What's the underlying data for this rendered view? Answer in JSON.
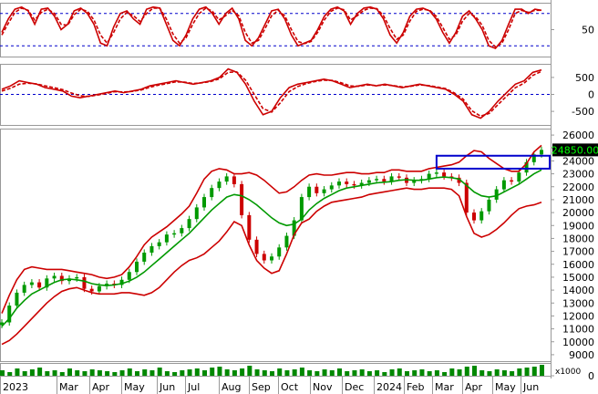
{
  "chart_data": {
    "type": "line",
    "colors": {
      "price": "#cc0000",
      "ma": "#009900",
      "band": "#cc0000",
      "up": "#009900",
      "down": "#cc0000",
      "ref": "#0000cc",
      "box": "#0000cc",
      "volume": "#008800"
    },
    "x_labels": [
      "2023",
      "Mar",
      "Apr",
      "May",
      "Jun",
      "Jul",
      "Aug",
      "Sep",
      "Oct",
      "Nov",
      "Dec",
      "2024",
      "Feb",
      "Mar",
      "Apr",
      "May",
      "Jun"
    ],
    "oscillator": {
      "y_ticks": [
        50
      ],
      "ref_lines": [
        80,
        20
      ],
      "ylim": [
        0,
        100
      ],
      "k": [
        45,
        70,
        88,
        92,
        85,
        60,
        88,
        90,
        75,
        50,
        60,
        85,
        90,
        80,
        60,
        25,
        20,
        55,
        80,
        85,
        70,
        60,
        88,
        92,
        90,
        60,
        30,
        20,
        40,
        70,
        88,
        92,
        80,
        60,
        80,
        90,
        70,
        30,
        20,
        35,
        60,
        85,
        88,
        70,
        40,
        20,
        25,
        30,
        50,
        75,
        88,
        92,
        85,
        60,
        80,
        90,
        92,
        88,
        70,
        40,
        25,
        45,
        75,
        88,
        90,
        85,
        70,
        45,
        25,
        45,
        75,
        85,
        70,
        50,
        20,
        15,
        30,
        60,
        88,
        88,
        80,
        88,
        86
      ],
      "d": [
        40,
        62,
        82,
        90,
        86,
        68,
        82,
        88,
        80,
        60,
        58,
        78,
        88,
        84,
        68,
        40,
        25,
        45,
        70,
        82,
        76,
        65,
        80,
        90,
        90,
        70,
        42,
        25,
        35,
        60,
        80,
        90,
        84,
        68,
        76,
        86,
        76,
        45,
        25,
        30,
        52,
        76,
        86,
        76,
        50,
        28,
        24,
        28,
        45,
        68,
        84,
        90,
        87,
        68,
        76,
        86,
        90,
        89,
        76,
        52,
        32,
        40,
        66,
        84,
        88,
        86,
        75,
        54,
        32,
        40,
        66,
        80,
        74,
        58,
        30,
        18,
        25,
        50,
        80,
        86,
        82,
        86,
        86
      ]
    },
    "macd": {
      "y_ticks": [
        500,
        0,
        -500
      ],
      "ylim": [
        -900,
        900
      ],
      "macd": [
        150,
        250,
        400,
        350,
        300,
        200,
        150,
        100,
        -50,
        -100,
        -50,
        0,
        50,
        100,
        50,
        100,
        150,
        250,
        300,
        350,
        400,
        350,
        300,
        350,
        400,
        500,
        750,
        650,
        300,
        -200,
        -600,
        -500,
        -100,
        200,
        300,
        350,
        400,
        450,
        400,
        300,
        200,
        250,
        300,
        250,
        300,
        250,
        200,
        250,
        300,
        250,
        200,
        150,
        0,
        -200,
        -600,
        -700,
        -500,
        -200,
        50,
        300,
        400,
        650,
        720
      ],
      "signal": [
        100,
        180,
        300,
        330,
        310,
        250,
        200,
        140,
        40,
        -40,
        -60,
        -20,
        30,
        80,
        70,
        90,
        130,
        210,
        270,
        320,
        370,
        360,
        320,
        340,
        380,
        460,
        650,
        660,
        420,
        0,
        -420,
        -520,
        -250,
        80,
        230,
        320,
        380,
        420,
        410,
        340,
        250,
        240,
        280,
        260,
        280,
        260,
        220,
        240,
        280,
        260,
        220,
        170,
        40,
        -140,
        -480,
        -640,
        -560,
        -300,
        -50,
        200,
        330,
        560,
        680
      ]
    },
    "price": {
      "y_ticks": [
        26000,
        25000,
        24000,
        23000,
        22000,
        21000,
        20000,
        19000,
        18000,
        17000,
        16000,
        15000,
        14000,
        13000,
        12000,
        11000,
        10000,
        9000
      ],
      "ylim": [
        8500,
        26500
      ],
      "last_price": "24850.00",
      "close": [
        11500,
        12800,
        13800,
        14400,
        14600,
        14200,
        14900,
        15100,
        14700,
        14900,
        15000,
        14100,
        13900,
        14300,
        14500,
        14400,
        14800,
        15400,
        16200,
        16900,
        17400,
        17700,
        18300,
        18400,
        18800,
        19500,
        20400,
        21200,
        21900,
        22400,
        22800,
        22200,
        19800,
        17900,
        16800,
        16300,
        16600,
        17300,
        18200,
        19400,
        21200,
        22000,
        21500,
        21800,
        22100,
        22400,
        22200,
        22100,
        22300,
        22500,
        22600,
        22400,
        22800,
        22700,
        22300,
        22500,
        22600,
        23000,
        23100,
        22800,
        22700,
        22300,
        20000,
        19400,
        20100,
        21000,
        21800,
        22500,
        22400,
        23100,
        23900,
        24500,
        24850
      ],
      "ma": [
        11200,
        11800,
        12600,
        13200,
        13700,
        14000,
        14300,
        14600,
        14800,
        14850,
        14800,
        14700,
        14500,
        14400,
        14350,
        14400,
        14500,
        14700,
        15000,
        15400,
        15900,
        16400,
        16900,
        17400,
        17900,
        18400,
        19000,
        19600,
        20200,
        20700,
        21200,
        21400,
        21300,
        21000,
        20600,
        20100,
        19600,
        19200,
        19000,
        19100,
        19500,
        20200,
        20700,
        21100,
        21400,
        21700,
        21900,
        22000,
        22100,
        22200,
        22300,
        22350,
        22400,
        22500,
        22550,
        22500,
        22500,
        22600,
        22700,
        22750,
        22700,
        22600,
        22100,
        21600,
        21300,
        21200,
        21300,
        21600,
        21900,
        22200,
        22600,
        23000,
        23300
      ],
      "upper": [
        12200,
        13600,
        14800,
        15600,
        15800,
        15700,
        15600,
        15600,
        15600,
        15500,
        15400,
        15300,
        15200,
        15000,
        14900,
        15000,
        15200,
        15800,
        16600,
        17500,
        18100,
        18500,
        18900,
        19400,
        19900,
        20500,
        21500,
        22600,
        23200,
        23400,
        23300,
        23000,
        23000,
        23100,
        22900,
        22500,
        22000,
        21500,
        21600,
        22000,
        22500,
        22900,
        23000,
        22900,
        22900,
        23000,
        23100,
        23100,
        23000,
        23000,
        23100,
        23100,
        23300,
        23300,
        23200,
        23200,
        23200,
        23400,
        23500,
        23600,
        23700,
        23900,
        24400,
        24800,
        24700,
        24200,
        23800,
        23400,
        23200,
        23200,
        23800,
        24700,
        25200
      ],
      "lower": [
        9800,
        10100,
        10600,
        11200,
        11800,
        12400,
        13000,
        13500,
        13900,
        14100,
        14200,
        14000,
        13800,
        13700,
        13700,
        13700,
        13800,
        13800,
        13700,
        13600,
        13800,
        14200,
        14800,
        15400,
        15900,
        16300,
        16500,
        16800,
        17300,
        17800,
        18500,
        19300,
        19000,
        17500,
        16300,
        15700,
        15300,
        15500,
        16800,
        18300,
        19200,
        19500,
        20100,
        20500,
        20800,
        20900,
        21000,
        21100,
        21200,
        21400,
        21500,
        21600,
        21700,
        21800,
        21900,
        21800,
        21800,
        21900,
        21900,
        21900,
        21800,
        21300,
        19700,
        18400,
        18100,
        18300,
        18700,
        19200,
        19800,
        20300,
        20500,
        20600,
        20800
      ]
    },
    "volume": {
      "y_ticks": [
        "0"
      ],
      "unit": "x1000",
      "values": [
        6,
        4,
        8,
        5,
        7,
        9,
        5,
        6,
        4,
        8,
        6,
        5,
        7,
        6,
        5,
        4,
        6,
        8,
        5,
        7,
        6,
        9,
        5,
        4,
        6,
        7,
        8,
        6,
        9,
        10,
        7,
        6,
        8,
        11,
        7,
        6,
        5,
        8,
        6,
        7,
        9,
        6,
        5,
        7,
        6,
        8,
        5,
        6,
        7,
        5,
        6,
        4,
        7,
        8,
        5,
        6,
        7,
        5,
        6,
        4,
        8,
        7,
        10,
        11,
        6,
        5,
        7,
        6,
        5,
        8,
        9,
        10,
        12
      ]
    }
  }
}
